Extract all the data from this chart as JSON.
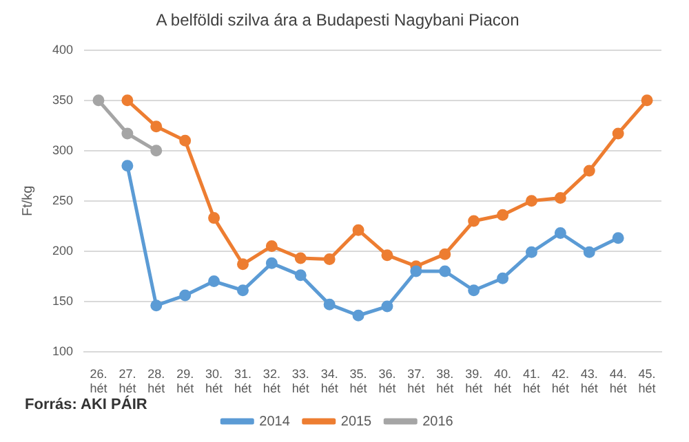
{
  "chart_data": {
    "type": "line",
    "title": "A belföldi szilva ára a Budapesti Nagybani Piacon",
    "ylabel": "Ft/kg",
    "categories": [
      "26. hét",
      "27. hét",
      "28. hét",
      "29. hét",
      "30. hét",
      "31. hét",
      "32. hét",
      "33. hét",
      "34. hét",
      "35. hét",
      "36. hét",
      "37. hét",
      "38. hét",
      "39. hét",
      "40. hét",
      "41. hét",
      "42. hét",
      "43. hét",
      "44. hét",
      "45. hét"
    ],
    "series": [
      {
        "name": "2014",
        "color": "#5b9bd5",
        "values": [
          null,
          285,
          146,
          156,
          170,
          161,
          188,
          176,
          147,
          136,
          145,
          180,
          180,
          161,
          173,
          199,
          218,
          199,
          213,
          null
        ]
      },
      {
        "name": "2015",
        "color": "#ed7d31",
        "values": [
          null,
          350,
          324,
          310,
          233,
          187,
          205,
          193,
          192,
          221,
          196,
          185,
          197,
          230,
          236,
          250,
          253,
          280,
          317,
          350
        ]
      },
      {
        "name": "2016",
        "color": "#a5a5a5",
        "values": [
          350,
          317,
          300,
          null,
          null,
          null,
          null,
          null,
          null,
          null,
          null,
          null,
          null,
          null,
          null,
          null,
          null,
          null,
          null,
          null
        ]
      }
    ],
    "ylim": [
      100,
      400
    ],
    "yticks": [
      100,
      150,
      200,
      250,
      300,
      350,
      400
    ],
    "grid": "y",
    "legend": "bottom",
    "marker": "circle",
    "line_style": "solid",
    "annotations": [
      "Forrás: AKI PÁIR"
    ]
  }
}
